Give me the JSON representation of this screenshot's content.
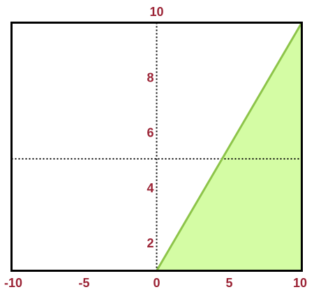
{
  "chart_data": {
    "type": "area",
    "title": "",
    "xlabel": "",
    "ylabel": "",
    "xlim": [
      -10,
      10
    ],
    "ylim": [
      1,
      10
    ],
    "x_ticks": [
      "-10",
      "-5",
      "0",
      "5",
      "10"
    ],
    "y_ticks": [
      "2",
      "4",
      "6",
      "8",
      "10"
    ],
    "reference_lines": {
      "vertical_x": 0,
      "horizontal_y": 5.06
    },
    "series": [
      {
        "type": "line",
        "x": [
          0,
          10
        ],
        "y": [
          1,
          10
        ],
        "fill": "below-right"
      }
    ],
    "grid": false,
    "colors": {
      "tick_label": "#9b2335",
      "line": "#8dc44a",
      "fill": "#d4fca4",
      "axes_frame": "#000000",
      "reference_line": "#000000"
    }
  }
}
